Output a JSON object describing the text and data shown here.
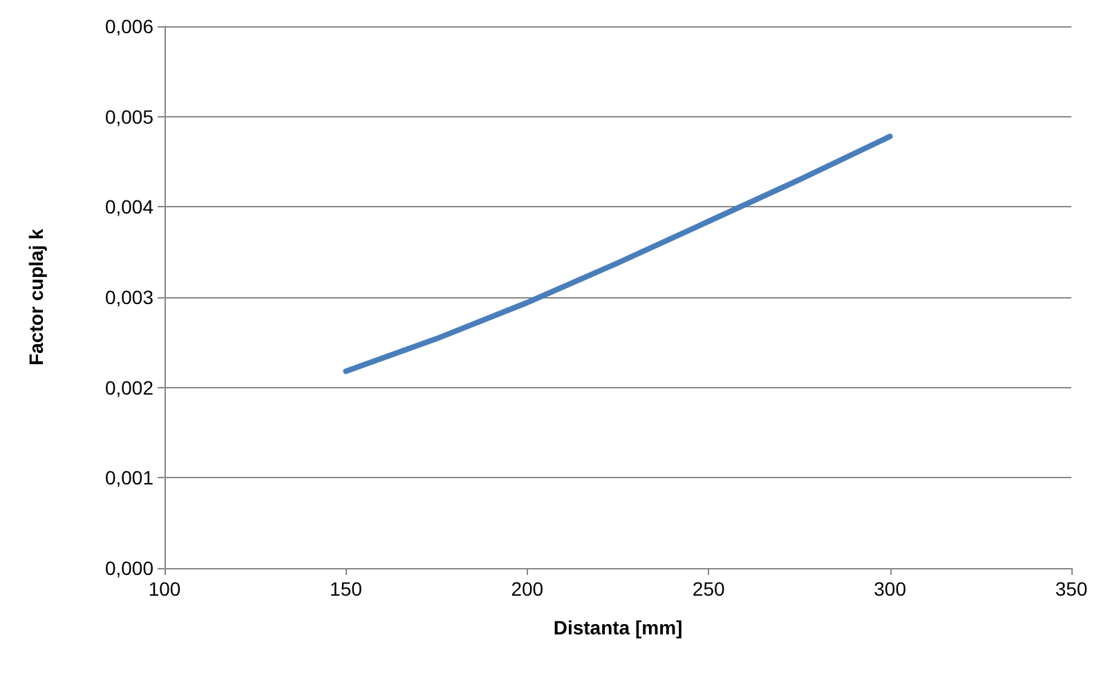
{
  "chart_data": {
    "type": "line",
    "xlabel": "Distanta [mm]",
    "ylabel": "Factor cuplaj k",
    "x": [
      150,
      175,
      200,
      225,
      250,
      275,
      300
    ],
    "series": [
      {
        "color": "#4a7ebb",
        "values": [
          0.00218,
          0.00254,
          0.00294,
          0.00338,
          0.00384,
          0.0043,
          0.00478
        ]
      }
    ],
    "xlim": [
      100,
      350
    ],
    "xticks": [
      100,
      150,
      200,
      250,
      300,
      350
    ],
    "ylim": [
      0,
      0.006
    ],
    "yticks": [
      {
        "value": 0,
        "label": "0,000"
      },
      {
        "value": 0.001,
        "label": "0,001"
      },
      {
        "value": 0.002,
        "label": "0,002"
      },
      {
        "value": 0.003,
        "label": "0,003"
      },
      {
        "value": 0.004,
        "label": "0,004"
      },
      {
        "value": 0.005,
        "label": "0,005"
      },
      {
        "value": 0.006,
        "label": "0,006"
      }
    ],
    "grid": "y",
    "marker": "none",
    "line_style": "solid"
  }
}
